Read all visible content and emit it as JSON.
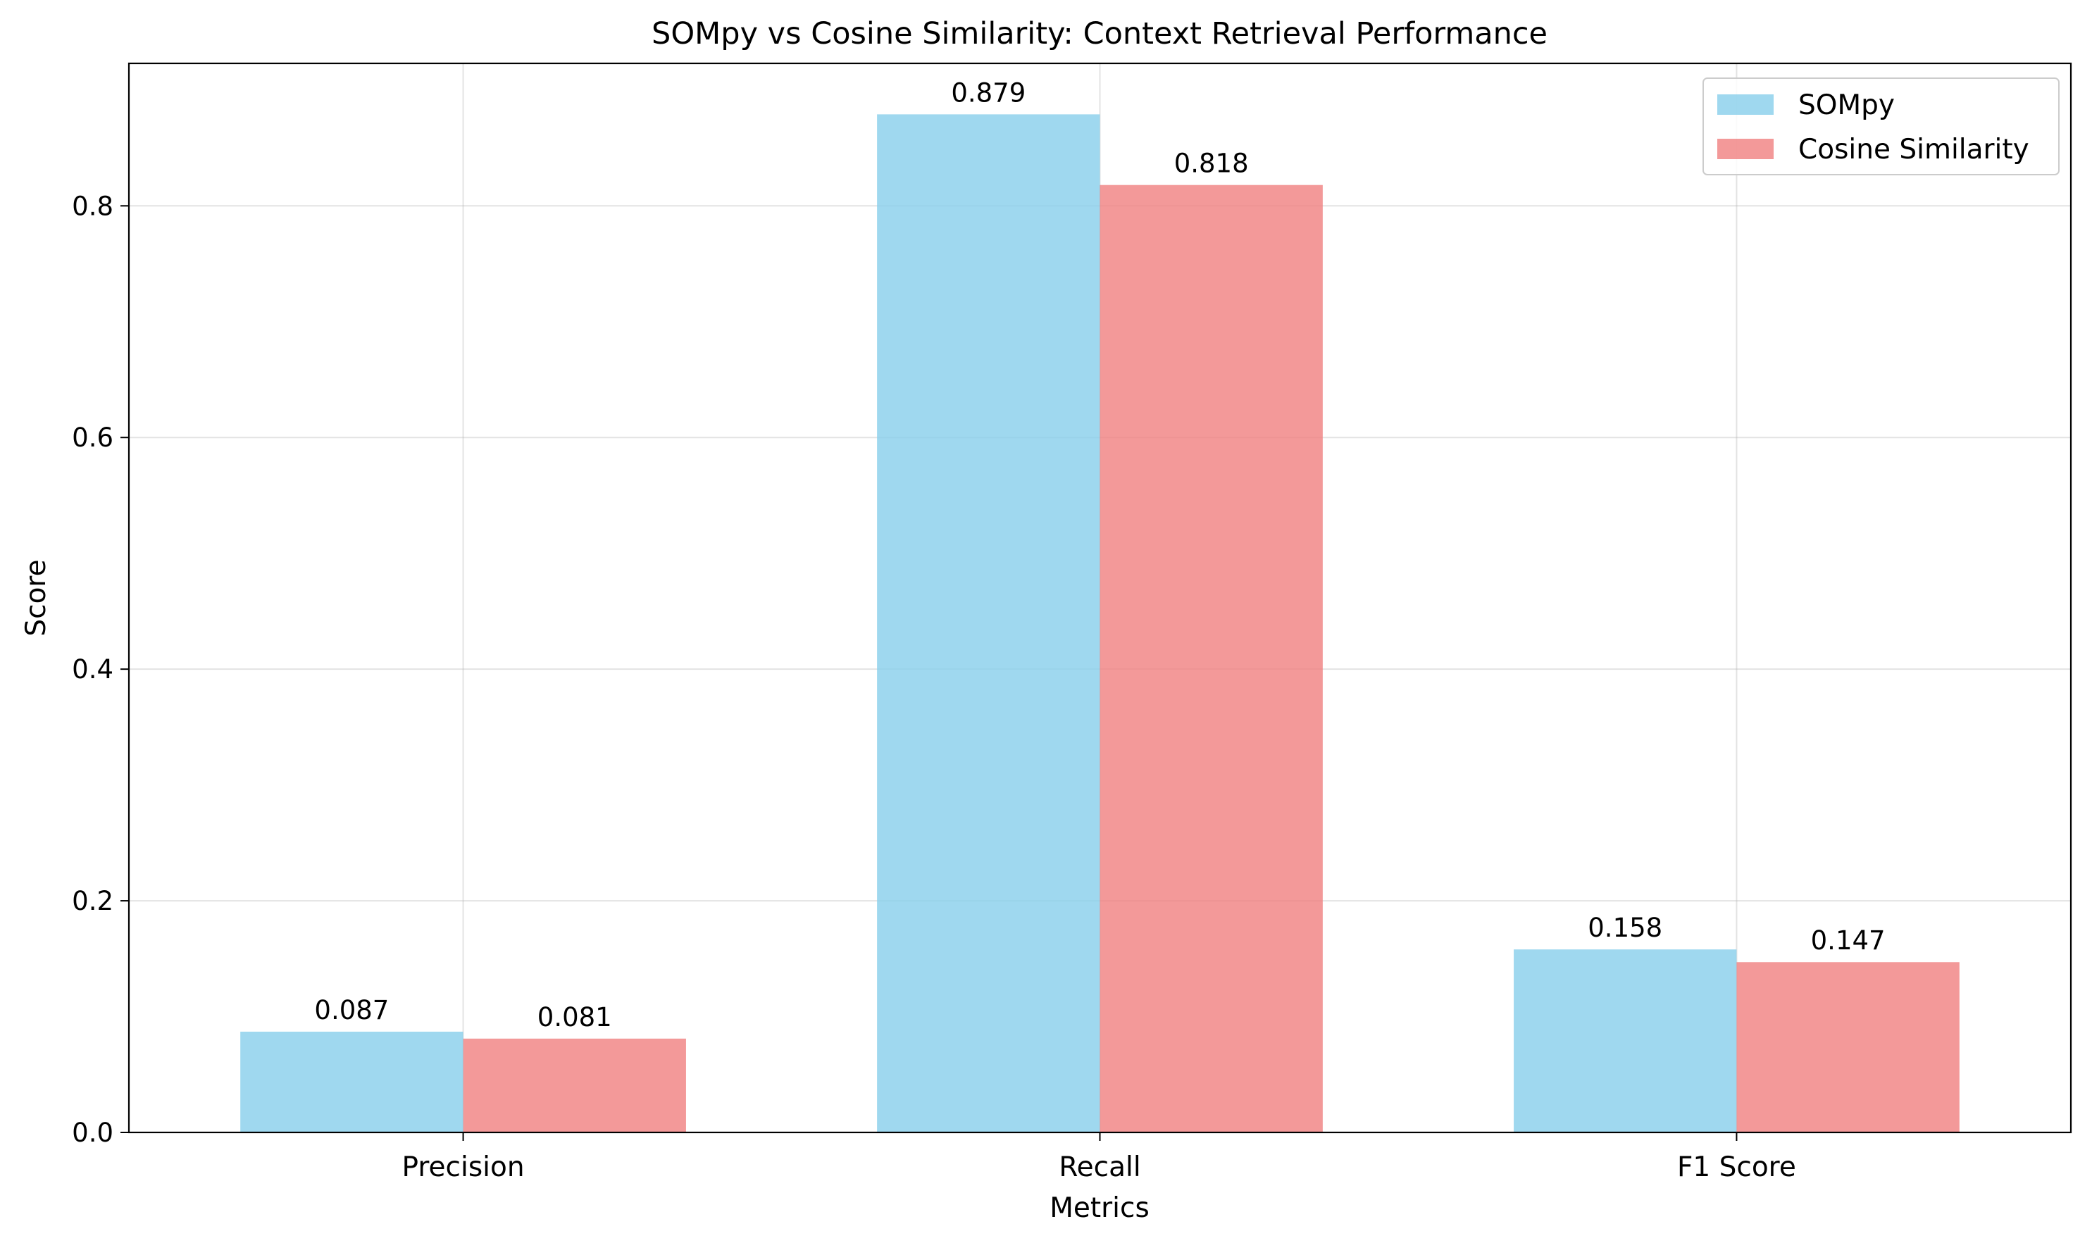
{
  "chart_data": {
    "type": "bar",
    "title": "SOMpy vs Cosine Similarity: Context Retrieval Performance",
    "xlabel": "Metrics",
    "ylabel": "Score",
    "categories": [
      "Precision",
      "Recall",
      "F1 Score"
    ],
    "series": [
      {
        "name": "SOMpy",
        "values": [
          0.087,
          0.879,
          0.158
        ],
        "labels": [
          "0.087",
          "0.879",
          "0.158"
        ],
        "color": "#87ceeb"
      },
      {
        "name": "Cosine Similarity",
        "values": [
          0.081,
          0.818,
          0.147
        ],
        "labels": [
          "0.081",
          "0.818",
          "0.147"
        ],
        "color": "#f08080"
      }
    ],
    "ylim": [
      0,
      0.923
    ],
    "yticks": [
      0.0,
      0.2,
      0.4,
      0.6,
      0.8
    ],
    "ytick_labels": [
      "0.0",
      "0.2",
      "0.4",
      "0.6",
      "0.8"
    ],
    "grid": true,
    "legend": "top-right"
  }
}
